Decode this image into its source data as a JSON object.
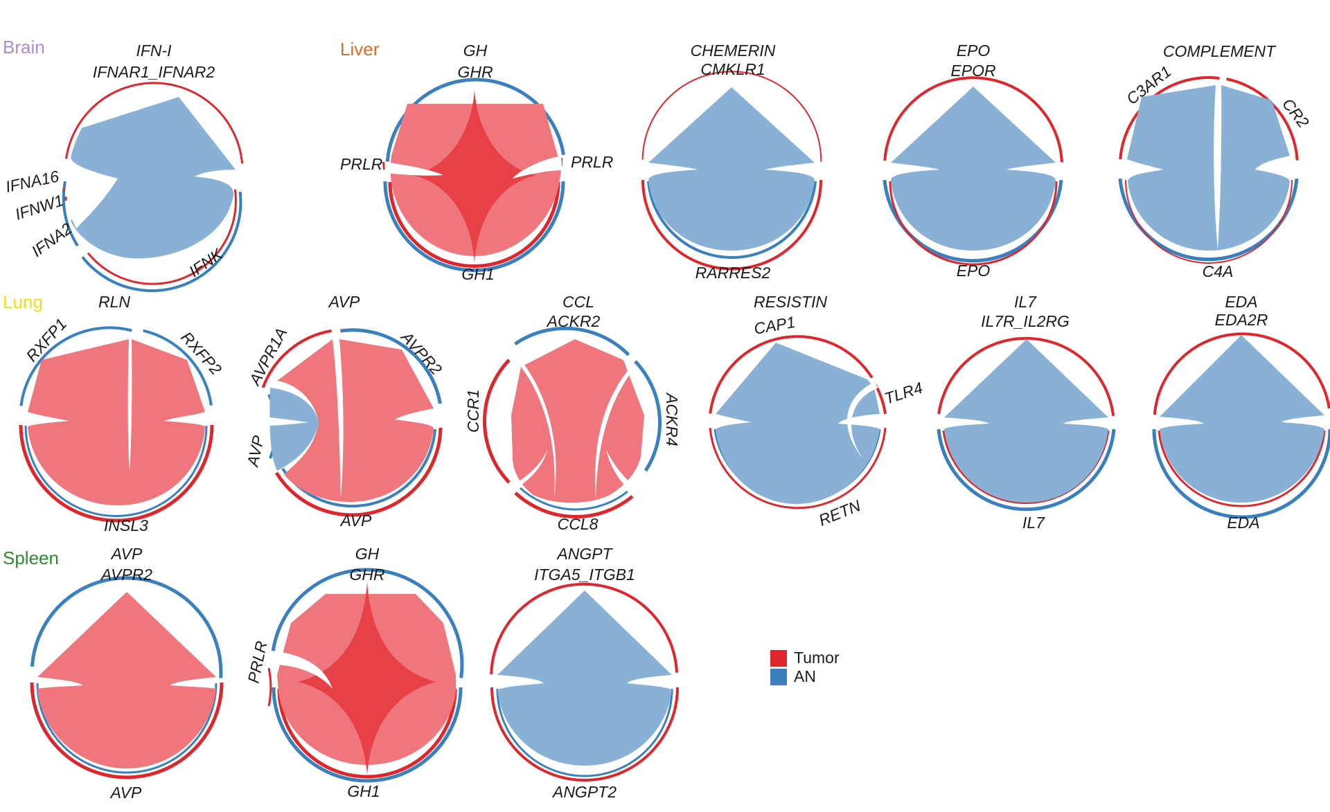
{
  "colors": {
    "tumor": "#e0262d",
    "an": "#3a80be",
    "tumor_fill": "#ee767c",
    "tumor_center": "#e84047",
    "an_fill": "#89b1d5"
  },
  "tissues": [
    {
      "name": "Brain",
      "color": "#a98ad6"
    },
    {
      "name": "Liver",
      "color": "#e06a25"
    },
    {
      "name": "Lung",
      "color": "#eedf20"
    },
    {
      "name": "Spleen",
      "color": "#2b8a2b"
    }
  ],
  "legend": [
    {
      "label": "Tumor",
      "color": "#e0262d"
    },
    {
      "label": "AN",
      "color": "#3a80be"
    }
  ],
  "plots": [
    {
      "tissue": "Brain",
      "pathway": "IFN-I",
      "fill": "an",
      "labels": [
        "IFN-I",
        "IFNAR1_IFNAR2",
        "IFNA16",
        "IFNW1",
        "IFNA2",
        "IFNK"
      ]
    },
    {
      "tissue": "Liver",
      "pathway": "GH",
      "fill": "tumor",
      "labels": [
        "GH",
        "GHR",
        "PRLR",
        "PRLR",
        "GH1"
      ]
    },
    {
      "tissue": "Liver",
      "pathway": "CHEMERIN",
      "fill": "an",
      "labels": [
        "CHEMERIN",
        "CMKLR1",
        "RARRES2"
      ]
    },
    {
      "tissue": "Liver",
      "pathway": "EPO",
      "fill": "an",
      "labels": [
        "EPO",
        "EPOR",
        "EPO"
      ]
    },
    {
      "tissue": "Liver",
      "pathway": "COMPLEMENT",
      "fill": "an",
      "labels": [
        "COMPLEMENT",
        "C3AR1",
        "CR2",
        "C4A"
      ]
    },
    {
      "tissue": "Lung",
      "pathway": "RLN",
      "fill": "tumor",
      "labels": [
        "RLN",
        "RXFP1",
        "RXFP2",
        "INSL3"
      ]
    },
    {
      "tissue": "Lung",
      "pathway": "AVP",
      "fill": "tumor",
      "labels": [
        "AVP",
        "AVPR1A",
        "AVPR2",
        "AVP",
        "AVP"
      ]
    },
    {
      "tissue": "Lung",
      "pathway": "CCL",
      "fill": "tumor",
      "labels": [
        "CCL",
        "ACKR2",
        "CCR1",
        "ACKR4",
        "CCL8"
      ]
    },
    {
      "tissue": "Lung",
      "pathway": "RESISTIN",
      "fill": "an",
      "labels": [
        "RESISTIN",
        "CAP1",
        "TLR4",
        "RETN"
      ]
    },
    {
      "tissue": "Lung",
      "pathway": "IL7",
      "fill": "an",
      "labels": [
        "IL7",
        "IL7R_IL2RG",
        "IL7"
      ]
    },
    {
      "tissue": "Lung",
      "pathway": "EDA",
      "fill": "an",
      "labels": [
        "EDA",
        "EDA2R",
        "EDA"
      ]
    },
    {
      "tissue": "Spleen",
      "pathway": "AVP",
      "fill": "tumor",
      "labels": [
        "AVP",
        "AVPR2",
        "AVP"
      ]
    },
    {
      "tissue": "Spleen",
      "pathway": "GH",
      "fill": "tumor",
      "labels": [
        "GH",
        "GHR",
        "PRLR",
        "GH1"
      ]
    },
    {
      "tissue": "Spleen",
      "pathway": "ANGPT",
      "fill": "an",
      "labels": [
        "ANGPT",
        "ITGA5_ITGB1",
        "ANGPT2"
      ]
    }
  ]
}
